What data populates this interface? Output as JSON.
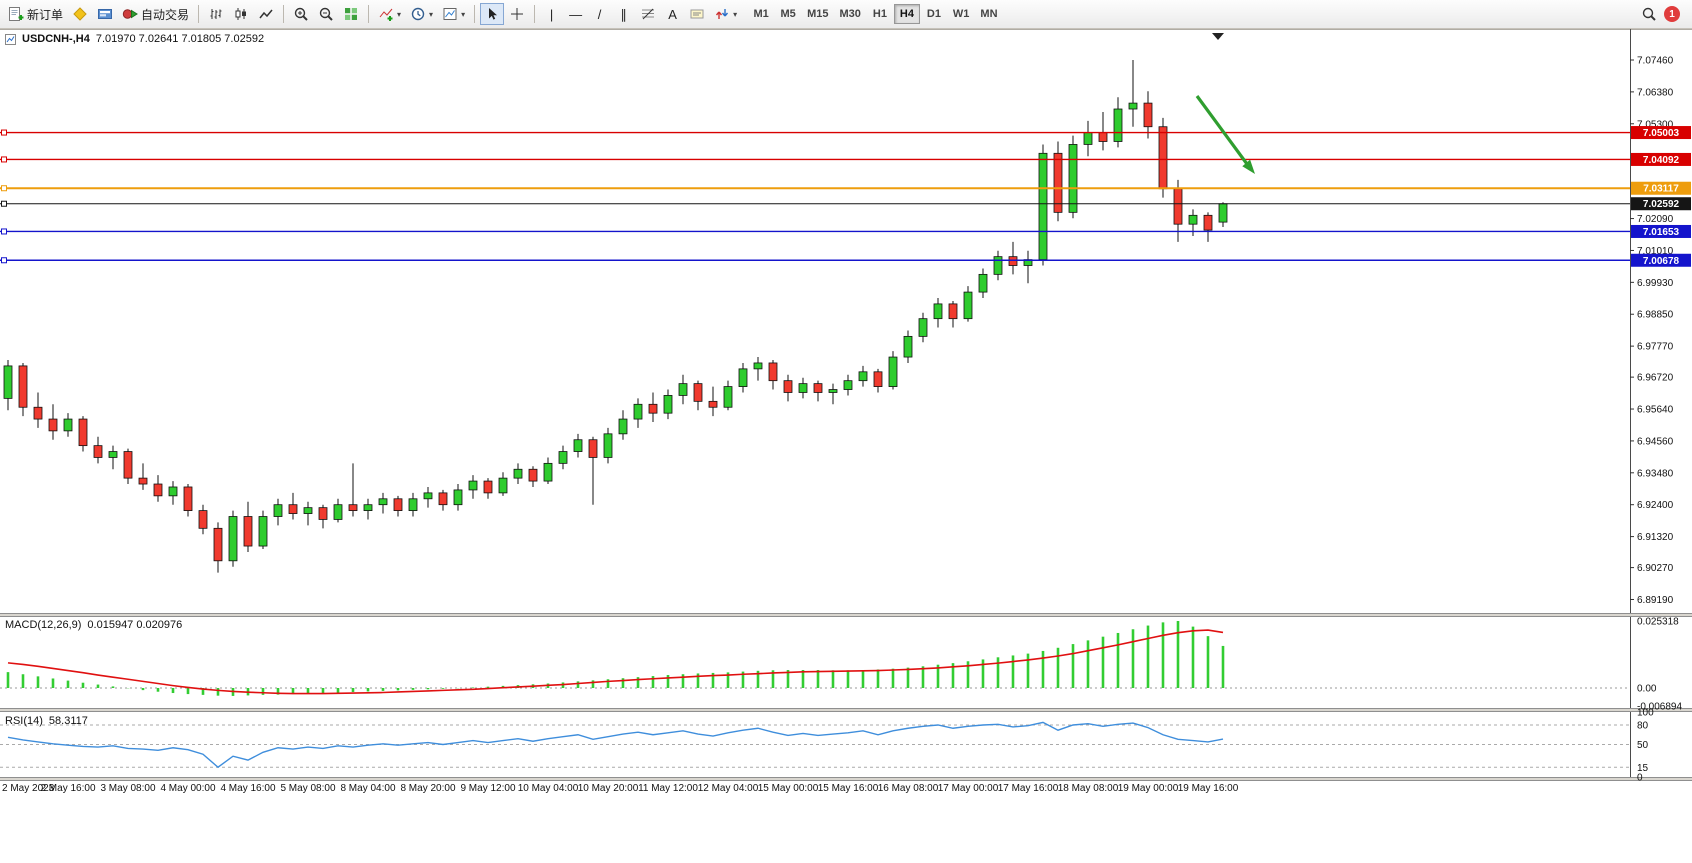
{
  "toolbar": {
    "new_order_label": "新订单",
    "auto_trading_label": "自动交易",
    "timeframes": [
      "M1",
      "M5",
      "M15",
      "M30",
      "H1",
      "H4",
      "D1",
      "W1",
      "MN"
    ],
    "active_timeframe": "H4",
    "badge_count": "1",
    "glyphs": {
      "caret": "▾",
      "vertical_line": "|",
      "horizontal_line": "—",
      "trendline": "/",
      "channel": "∥",
      "text_tool": "A"
    }
  },
  "chart_header": {
    "symbol": "USDCNH-,H4",
    "ohlc_line": "7.01970 7.02641 7.01805 7.02592"
  },
  "indicators": {
    "macd_label": "MACD(12,26,9)",
    "macd_values": "0.015947 0.020976",
    "rsi_label": "RSI(14)",
    "rsi_value": "58.3117"
  },
  "chart_data": {
    "type": "candlestick",
    "symbol": "USDCNH-",
    "timeframe": "H4",
    "title": "USDCNH-,H4",
    "current_bar": {
      "open": 7.0197,
      "high": 7.02641,
      "low": 7.01805,
      "close": 7.02592
    },
    "price_range": [
      6.888,
      7.079
    ],
    "price_axis_ticks": [
      "7.07460",
      "7.06380",
      "7.05300",
      "7.02090",
      "7.01010",
      "6.99930",
      "6.98850",
      "6.97770",
      "6.96720",
      "6.95640",
      "6.94560",
      "6.93480",
      "6.92400",
      "6.91320",
      "6.90270",
      "6.89190"
    ],
    "time_labels": [
      "2 May 2023",
      "2 May 16:00",
      "3 May 08:00",
      "4 May 00:00",
      "4 May 16:00",
      "5 May 08:00",
      "8 May 04:00",
      "8 May 20:00",
      "9 May 12:00",
      "10 May 04:00",
      "10 May 20:00",
      "11 May 12:00",
      "12 May 04:00",
      "15 May 00:00",
      "15 May 16:00",
      "16 May 08:00",
      "17 May 00:00",
      "17 May 16:00",
      "18 May 08:00",
      "19 May 00:00",
      "19 May 16:00"
    ],
    "bull_color": "#2ecc2e",
    "bear_color": "#f03a2e",
    "candles": [
      [
        6.96,
        6.973,
        6.956,
        6.971
      ],
      [
        6.971,
        6.972,
        6.954,
        6.957
      ],
      [
        6.957,
        6.962,
        6.95,
        6.953
      ],
      [
        6.953,
        6.958,
        6.946,
        6.949
      ],
      [
        6.949,
        6.955,
        6.947,
        6.953
      ],
      [
        6.953,
        6.954,
        6.942,
        6.944
      ],
      [
        6.944,
        6.947,
        6.938,
        6.94
      ],
      [
        6.94,
        6.944,
        6.936,
        6.942
      ],
      [
        6.942,
        6.943,
        6.931,
        6.933
      ],
      [
        6.933,
        6.938,
        6.929,
        6.931
      ],
      [
        6.931,
        6.934,
        6.925,
        6.927
      ],
      [
        6.927,
        6.932,
        6.924,
        6.93
      ],
      [
        6.93,
        6.931,
        6.92,
        6.922
      ],
      [
        6.922,
        6.924,
        6.914,
        6.916
      ],
      [
        6.916,
        6.918,
        6.901,
        6.905
      ],
      [
        6.905,
        6.922,
        6.903,
        6.92
      ],
      [
        6.92,
        6.925,
        6.908,
        6.91
      ],
      [
        6.91,
        6.922,
        6.909,
        6.92
      ],
      [
        6.92,
        6.926,
        6.917,
        6.924
      ],
      [
        6.924,
        6.928,
        6.919,
        6.921
      ],
      [
        6.921,
        6.925,
        6.917,
        6.923
      ],
      [
        6.923,
        6.924,
        6.916,
        6.919
      ],
      [
        6.919,
        6.926,
        6.918,
        6.924
      ],
      [
        6.924,
        6.938,
        6.92,
        6.922
      ],
      [
        6.922,
        6.926,
        6.919,
        6.924
      ],
      [
        6.924,
        6.928,
        6.921,
        6.926
      ],
      [
        6.926,
        6.927,
        6.92,
        6.922
      ],
      [
        6.922,
        6.928,
        6.92,
        6.926
      ],
      [
        6.926,
        6.93,
        6.923,
        6.928
      ],
      [
        6.928,
        6.929,
        6.922,
        6.924
      ],
      [
        6.924,
        6.931,
        6.922,
        6.929
      ],
      [
        6.929,
        6.934,
        6.926,
        6.932
      ],
      [
        6.932,
        6.933,
        6.926,
        6.928
      ],
      [
        6.928,
        6.935,
        6.927,
        6.933
      ],
      [
        6.933,
        6.938,
        6.931,
        6.936
      ],
      [
        6.936,
        6.937,
        6.93,
        6.932
      ],
      [
        6.932,
        6.94,
        6.931,
        6.938
      ],
      [
        6.938,
        6.944,
        6.936,
        6.942
      ],
      [
        6.942,
        6.948,
        6.94,
        6.946
      ],
      [
        6.946,
        6.947,
        6.924,
        6.94
      ],
      [
        6.94,
        6.95,
        6.938,
        6.948
      ],
      [
        6.948,
        6.956,
        6.946,
        6.953
      ],
      [
        6.953,
        6.96,
        6.95,
        6.958
      ],
      [
        6.958,
        6.962,
        6.952,
        6.955
      ],
      [
        6.955,
        6.963,
        6.953,
        6.961
      ],
      [
        6.961,
        6.968,
        6.958,
        6.965
      ],
      [
        6.965,
        6.966,
        6.956,
        6.959
      ],
      [
        6.959,
        6.964,
        6.954,
        6.957
      ],
      [
        6.957,
        6.966,
        6.956,
        6.964
      ],
      [
        6.964,
        6.972,
        6.962,
        6.97
      ],
      [
        6.97,
        6.974,
        6.966,
        6.972
      ],
      [
        6.972,
        6.973,
        6.963,
        6.966
      ],
      [
        6.966,
        6.968,
        6.959,
        6.962
      ],
      [
        6.962,
        6.967,
        6.96,
        6.965
      ],
      [
        6.965,
        6.966,
        6.959,
        6.962
      ],
      [
        6.962,
        6.965,
        6.958,
        6.963
      ],
      [
        6.963,
        6.968,
        6.961,
        6.966
      ],
      [
        6.966,
        6.971,
        6.964,
        6.969
      ],
      [
        6.969,
        6.97,
        6.962,
        6.964
      ],
      [
        6.964,
        6.976,
        6.963,
        6.974
      ],
      [
        6.974,
        6.983,
        6.972,
        6.981
      ],
      [
        6.981,
        6.989,
        6.979,
        6.987
      ],
      [
        6.987,
        6.994,
        6.984,
        6.992
      ],
      [
        6.992,
        6.993,
        6.984,
        6.987
      ],
      [
        6.987,
        6.998,
        6.986,
        6.996
      ],
      [
        6.996,
        7.004,
        6.994,
        7.002
      ],
      [
        7.002,
        7.01,
        7.0,
        7.008
      ],
      [
        7.008,
        7.013,
        7.002,
        7.005
      ],
      [
        7.005,
        7.01,
        6.999,
        7.007
      ],
      [
        7.007,
        7.046,
        7.005,
        7.043
      ],
      [
        7.043,
        7.047,
        7.02,
        7.023
      ],
      [
        7.023,
        7.049,
        7.021,
        7.046
      ],
      [
        7.046,
        7.054,
        7.042,
        7.05
      ],
      [
        7.05,
        7.057,
        7.044,
        7.047
      ],
      [
        7.047,
        7.062,
        7.045,
        7.058
      ],
      [
        7.058,
        7.0746,
        7.052,
        7.06
      ],
      [
        7.06,
        7.064,
        7.048,
        7.052
      ],
      [
        7.052,
        7.055,
        7.028,
        7.031
      ],
      [
        7.031,
        7.034,
        7.013,
        7.019
      ],
      [
        7.019,
        7.024,
        7.015,
        7.022
      ],
      [
        7.022,
        7.023,
        7.013,
        7.017
      ],
      [
        7.0197,
        7.02641,
        7.01805,
        7.02592
      ]
    ],
    "hlines": [
      {
        "price": 7.05003,
        "label": "7.05003",
        "color": "#d80000",
        "width": 1.4
      },
      {
        "price": 7.04092,
        "label": "7.04092",
        "color": "#d80000",
        "width": 1.4
      },
      {
        "price": 7.03117,
        "label": "7.03117",
        "color": "#ee9d0d",
        "width": 2
      },
      {
        "price": 7.02592,
        "label": "7.02592",
        "color": "#151515",
        "width": 1
      },
      {
        "price": 7.01653,
        "label": "7.01653",
        "color": "#1414cc",
        "width": 1.4
      },
      {
        "price": 7.00678,
        "label": "7.00678",
        "color": "#1414cc",
        "width": 1.4
      }
    ],
    "annotation": {
      "type": "arrow",
      "direction": "down-right",
      "color": "#2f9e2f"
    },
    "macd": {
      "histogram_color": "#32cd32",
      "signal_color": "#e01010",
      "axis": [
        "0.025318",
        "0.00",
        "-0.006894"
      ],
      "histogram": [
        0.006,
        0.0052,
        0.0044,
        0.0036,
        0.0028,
        0.002,
        0.0013,
        0.0006,
        -0.0001,
        -0.0008,
        -0.0014,
        -0.0019,
        -0.0023,
        -0.0026,
        -0.0029,
        -0.003,
        -0.0028,
        -0.0026,
        -0.0025,
        -0.0023,
        -0.0021,
        -0.0019,
        -0.0017,
        -0.0015,
        -0.0013,
        -0.0011,
        -0.0009,
        -0.0007,
        -0.0005,
        -0.0003,
        -0.0001,
        0.0002,
        0.0005,
        0.0008,
        0.0011,
        0.0014,
        0.0017,
        0.0021,
        0.0025,
        0.0029,
        0.0033,
        0.0037,
        0.0041,
        0.0045,
        0.0049,
        0.0052,
        0.0055,
        0.0057,
        0.0059,
        0.0062,
        0.0065,
        0.0067,
        0.0068,
        0.0068,
        0.0068,
        0.0067,
        0.0067,
        0.0068,
        0.007,
        0.0073,
        0.0077,
        0.0082,
        0.0088,
        0.0094,
        0.0101,
        0.0108,
        0.0116,
        0.0123,
        0.013,
        0.014,
        0.0152,
        0.0166,
        0.018,
        0.0194,
        0.0208,
        0.0222,
        0.0236,
        0.0248,
        0.0253,
        0.0232,
        0.0196,
        0.0159
      ],
      "signal": [
        0.0095,
        0.0089,
        0.0082,
        0.0074,
        0.0066,
        0.0058,
        0.0049,
        0.0041,
        0.0033,
        0.0025,
        0.0017,
        0.0009,
        0.0002,
        -0.0004,
        -0.0009,
        -0.0013,
        -0.0016,
        -0.0018,
        -0.002,
        -0.0021,
        -0.0021,
        -0.0021,
        -0.002,
        -0.0019,
        -0.0018,
        -0.0017,
        -0.0015,
        -0.0013,
        -0.0011,
        -0.0009,
        -0.0007,
        -0.0005,
        -0.0002,
        0.0001,
        0.0004,
        0.0007,
        0.001,
        0.0013,
        0.0017,
        0.0021,
        0.0025,
        0.0028,
        0.0032,
        0.0035,
        0.0038,
        0.0041,
        0.0044,
        0.0047,
        0.0049,
        0.0052,
        0.0054,
        0.0057,
        0.0059,
        0.0061,
        0.0062,
        0.0063,
        0.0064,
        0.0065,
        0.0066,
        0.0068,
        0.007,
        0.0073,
        0.0076,
        0.008,
        0.0084,
        0.0089,
        0.0094,
        0.01,
        0.0106,
        0.0113,
        0.0121,
        0.013,
        0.0141,
        0.0152,
        0.0163,
        0.0175,
        0.0187,
        0.0199,
        0.0209,
        0.0216,
        0.0219,
        0.021
      ]
    },
    "rsi": {
      "line_color": "#3f8edc",
      "levels": [
        80,
        50,
        15
      ],
      "axis": [
        "100",
        "80",
        "50",
        "15",
        "0"
      ],
      "values": [
        61,
        57,
        54,
        51,
        49,
        47,
        46,
        48,
        44,
        43,
        41,
        45,
        42,
        35,
        15,
        32,
        26,
        38,
        45,
        43,
        46,
        44,
        48,
        46,
        49,
        51,
        49,
        51,
        53,
        50,
        53,
        56,
        53,
        56,
        59,
        55,
        59,
        62,
        65,
        58,
        62,
        66,
        69,
        65,
        68,
        71,
        66,
        63,
        68,
        72,
        75,
        69,
        64,
        67,
        64,
        66,
        68,
        71,
        65,
        71,
        75,
        78,
        80,
        75,
        78,
        80,
        81,
        77,
        79,
        84,
        72,
        80,
        82,
        78,
        81,
        83,
        76,
        65,
        58,
        56,
        54,
        58.3
      ]
    }
  }
}
